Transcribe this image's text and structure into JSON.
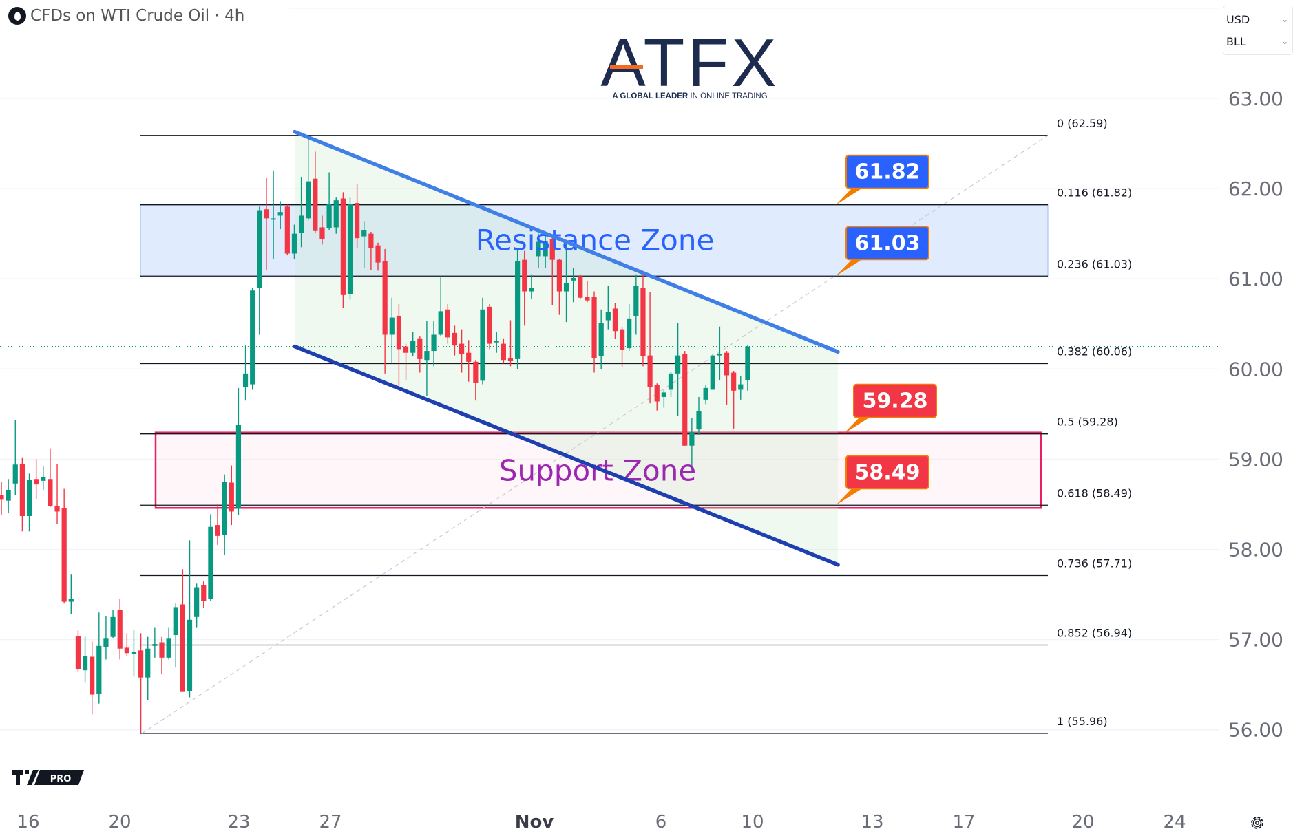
{
  "header": {
    "symbol_icon": "oil-drop-icon",
    "title": "CFDs on WTI Crude Oil · 4h"
  },
  "logo": {
    "brand": "ATFX",
    "tagline": "A GLOBAL LEADER IN ONLINE TRADING",
    "tagline_bold": "A GLOBAL LEADER",
    "tagline_rest": "IN ONLINE TRADING"
  },
  "unit_selector": {
    "currency": "USD",
    "unit": "BLL"
  },
  "branding": {
    "tv_logo": "TV",
    "badge": "PRO"
  },
  "settings_icon": "gear-icon",
  "colors": {
    "up": "#089981",
    "down": "#f23645",
    "resistance_text": "#2962ff",
    "support_text": "#9c27b0",
    "support_border": "#e91e63",
    "callout_blue": "#2962ff",
    "callout_red": "#f23645",
    "callout_border": "#f57c00",
    "channel_upper": "#3f7fe6",
    "channel_lower": "#1e3fb0"
  },
  "chart_data": {
    "type": "candlestick",
    "title": "CFDs on WTI Crude Oil · 4h",
    "ylim": [
      55.6,
      63.4
    ],
    "y_ticks": [
      "56.00",
      "57.00",
      "58.00",
      "59.00",
      "60.00",
      "61.00",
      "62.00",
      "63.00"
    ],
    "x_ticks": [
      "16",
      "20",
      "23",
      "27",
      "Nov",
      "6",
      "10",
      "13",
      "17",
      "20",
      "24"
    ],
    "grid": true,
    "last_price": 60.25,
    "candles_ohlc": [
      [
        58.6,
        58.75,
        58.38,
        58.55
      ],
      [
        58.54,
        58.78,
        58.4,
        58.66
      ],
      [
        58.73,
        59.43,
        58.6,
        58.94
      ],
      [
        58.95,
        59.02,
        58.2,
        58.37
      ],
      [
        58.37,
        58.84,
        58.2,
        58.77
      ],
      [
        58.78,
        59.0,
        58.56,
        58.72
      ],
      [
        58.76,
        58.92,
        58.66,
        58.8
      ],
      [
        58.78,
        59.12,
        58.47,
        58.48
      ],
      [
        58.48,
        58.95,
        58.28,
        58.42
      ],
      [
        58.46,
        58.67,
        57.4,
        57.42
      ],
      [
        57.42,
        57.72,
        57.28,
        57.45
      ],
      [
        57.04,
        57.1,
        56.65,
        56.67
      ],
      [
        56.66,
        57.03,
        56.53,
        56.82
      ],
      [
        56.81,
        56.98,
        56.17,
        56.39
      ],
      [
        56.4,
        57.3,
        56.29,
        56.93
      ],
      [
        56.92,
        57.26,
        56.78,
        57.01
      ],
      [
        57.03,
        57.33,
        57.02,
        57.25
      ],
      [
        57.33,
        57.45,
        56.78,
        56.9
      ],
      [
        56.91,
        57.07,
        56.82,
        56.85
      ],
      [
        56.84,
        57.11,
        56.59,
        56.86
      ],
      [
        56.88,
        57.07,
        55.96,
        56.58
      ],
      [
        56.58,
        57.03,
        56.33,
        56.9
      ],
      [
        56.93,
        57.13,
        56.8,
        56.95
      ],
      [
        56.97,
        57.03,
        56.62,
        56.8
      ],
      [
        56.8,
        57.13,
        56.78,
        57.01
      ],
      [
        57.05,
        57.4,
        56.69,
        57.36
      ],
      [
        57.39,
        57.78,
        56.42,
        56.42
      ],
      [
        56.43,
        58.1,
        56.36,
        57.22
      ],
      [
        57.25,
        57.62,
        57.13,
        57.58
      ],
      [
        57.6,
        57.65,
        57.35,
        57.43
      ],
      [
        57.45,
        58.39,
        57.43,
        58.25
      ],
      [
        58.27,
        58.5,
        58.05,
        58.15
      ],
      [
        58.16,
        58.83,
        57.94,
        58.75
      ],
      [
        58.74,
        58.93,
        58.27,
        58.42
      ],
      [
        58.45,
        59.79,
        58.38,
        59.38
      ],
      [
        59.8,
        60.26,
        59.65,
        59.95
      ],
      [
        59.83,
        60.9,
        59.77,
        60.87
      ],
      [
        60.9,
        61.8,
        60.38,
        61.76
      ],
      [
        61.77,
        62.12,
        61.1,
        61.67
      ],
      [
        61.66,
        62.2,
        61.22,
        61.67
      ],
      [
        61.7,
        61.86,
        61.55,
        61.74
      ],
      [
        61.8,
        61.82,
        61.26,
        61.28
      ],
      [
        61.28,
        61.6,
        61.22,
        61.5
      ],
      [
        61.51,
        62.13,
        61.35,
        61.7
      ],
      [
        61.67,
        62.59,
        61.65,
        62.08
      ],
      [
        62.11,
        62.41,
        61.51,
        61.53
      ],
      [
        61.57,
        61.7,
        61.38,
        61.44
      ],
      [
        61.56,
        62.18,
        61.54,
        61.83
      ],
      [
        61.57,
        61.9,
        61.5,
        61.87
      ],
      [
        61.89,
        61.96,
        60.68,
        60.82
      ],
      [
        60.83,
        61.9,
        60.77,
        61.83
      ],
      [
        61.84,
        62.05,
        61.34,
        61.45
      ],
      [
        61.47,
        61.64,
        61.12,
        61.54
      ],
      [
        61.5,
        61.52,
        61.1,
        61.34
      ],
      [
        61.37,
        61.4,
        61.09,
        61.18
      ],
      [
        61.2,
        61.33,
        59.95,
        60.38
      ],
      [
        60.38,
        60.79,
        60.07,
        60.57
      ],
      [
        60.59,
        60.72,
        59.77,
        60.22
      ],
      [
        60.25,
        60.28,
        59.88,
        60.18
      ],
      [
        60.18,
        60.41,
        60.14,
        60.31
      ],
      [
        60.34,
        60.36,
        59.96,
        60.11
      ],
      [
        60.1,
        60.53,
        59.7,
        60.2
      ],
      [
        60.2,
        60.53,
        60.03,
        60.38
      ],
      [
        60.38,
        61.03,
        60.36,
        60.64
      ],
      [
        60.66,
        60.72,
        60.28,
        60.35
      ],
      [
        60.4,
        60.48,
        60.15,
        60.26
      ],
      [
        60.28,
        60.44,
        59.96,
        60.17
      ],
      [
        60.18,
        60.32,
        59.86,
        60.08
      ],
      [
        60.08,
        60.1,
        59.65,
        59.85
      ],
      [
        59.87,
        60.79,
        59.83,
        60.66
      ],
      [
        60.69,
        60.72,
        60.22,
        60.28
      ],
      [
        60.3,
        60.41,
        60.18,
        60.31
      ],
      [
        60.28,
        60.34,
        60.06,
        60.1
      ],
      [
        60.12,
        60.54,
        60.03,
        60.09
      ],
      [
        60.11,
        61.34,
        60.0,
        61.2
      ],
      [
        61.21,
        61.31,
        60.48,
        60.86
      ],
      [
        60.86,
        61.05,
        60.78,
        60.9
      ],
      [
        61.25,
        61.5,
        61.12,
        61.41
      ],
      [
        61.25,
        61.48,
        61.12,
        61.42
      ],
      [
        61.44,
        61.47,
        60.71,
        61.21
      ],
      [
        61.21,
        61.22,
        60.6,
        60.86
      ],
      [
        60.86,
        61.42,
        60.52,
        60.95
      ],
      [
        60.98,
        61.12,
        60.74,
        61.01
      ],
      [
        61.03,
        61.05,
        60.78,
        60.79
      ],
      [
        60.8,
        60.98,
        60.74,
        60.76
      ],
      [
        60.8,
        60.86,
        59.96,
        60.12
      ],
      [
        60.14,
        60.66,
        60.0,
        60.51
      ],
      [
        60.54,
        60.92,
        60.44,
        60.63
      ],
      [
        60.67,
        60.73,
        60.33,
        60.42
      ],
      [
        60.44,
        60.46,
        60.02,
        60.21
      ],
      [
        60.23,
        60.72,
        60.2,
        60.56
      ],
      [
        60.59,
        61.05,
        60.38,
        60.92
      ],
      [
        60.9,
        61.04,
        60.03,
        60.14
      ],
      [
        60.15,
        60.85,
        59.62,
        59.8
      ],
      [
        59.82,
        59.84,
        59.54,
        59.64
      ],
      [
        59.69,
        59.77,
        59.57,
        59.74
      ],
      [
        59.77,
        59.97,
        59.69,
        59.95
      ],
      [
        59.95,
        60.51,
        59.48,
        60.15
      ],
      [
        60.17,
        60.2,
        59.15,
        59.15
      ],
      [
        59.15,
        59.46,
        58.85,
        59.3
      ],
      [
        59.33,
        59.69,
        59.27,
        59.53
      ],
      [
        59.66,
        59.82,
        59.61,
        59.79
      ],
      [
        59.77,
        60.17,
        59.77,
        60.15
      ],
      [
        60.15,
        60.47,
        59.88,
        60.17
      ],
      [
        60.18,
        60.2,
        59.6,
        59.93
      ],
      [
        59.96,
        59.98,
        59.34,
        59.76
      ],
      [
        59.77,
        59.92,
        59.66,
        59.83
      ],
      [
        59.88,
        60.26,
        59.76,
        60.25
      ]
    ],
    "fib_levels": [
      {
        "ratio": 0,
        "price": 62.59,
        "label": "0 (62.59)"
      },
      {
        "ratio": 0.116,
        "price": 61.82,
        "label": "0.116 (61.82)"
      },
      {
        "ratio": 0.236,
        "price": 61.03,
        "label": "0.236 (61.03)"
      },
      {
        "ratio": 0.382,
        "price": 60.06,
        "label": "0.382 (60.06)"
      },
      {
        "ratio": 0.5,
        "price": 59.28,
        "label": "0.5 (59.28)"
      },
      {
        "ratio": 0.618,
        "price": 58.49,
        "label": "0.618 (58.49)"
      },
      {
        "ratio": 0.736,
        "price": 57.71,
        "label": "0.736 (57.71)"
      },
      {
        "ratio": 0.852,
        "price": 56.94,
        "label": "0.852 (56.94)"
      },
      {
        "ratio": 1,
        "price": 55.96,
        "label": "1 (55.96)"
      }
    ],
    "zones": [
      {
        "label": "Resistance Zone",
        "top": 61.82,
        "bottom": 61.03,
        "kind": "resistance"
      },
      {
        "label": "Support Zone",
        "top": 59.28,
        "bottom": 58.49,
        "kind": "support"
      }
    ],
    "callouts": [
      {
        "text": "61.82",
        "price": 61.82,
        "kind": "blue"
      },
      {
        "text": "61.03",
        "price": 61.03,
        "kind": "blue"
      },
      {
        "text": "59.28",
        "price": 59.28,
        "kind": "red"
      },
      {
        "text": "58.49",
        "price": 58.49,
        "kind": "red"
      }
    ],
    "channel": {
      "upper": [
        62.63,
        60.19
      ],
      "lower": [
        60.25,
        57.83
      ]
    }
  }
}
